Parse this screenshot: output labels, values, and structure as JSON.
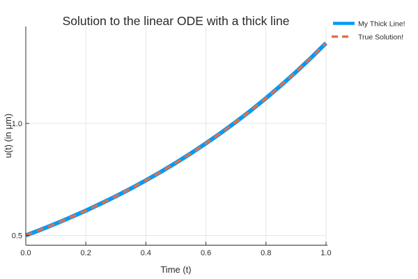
{
  "colors": {
    "background": "#ffffff",
    "grid": "#e6e6e6",
    "axis": "#2f2f2f",
    "text": "#2a2a2a",
    "series_blue": "#009af9",
    "series_orange": "#e36f47"
  },
  "chart_data": {
    "type": "line",
    "title": "Solution to the linear ODE with a thick line",
    "xlabel": "Time (t)",
    "ylabel": "u(t) (in μm)",
    "xlim": [
      0.0,
      1.0
    ],
    "ylim": [
      0.4564,
      1.433
    ],
    "grid": true,
    "legend_position": "outer-top-right",
    "xticks": {
      "values": [
        0.0,
        0.2,
        0.4,
        0.6,
        0.8,
        1.0
      ],
      "labels": [
        "0.0",
        "0.2",
        "0.4",
        "0.6",
        "0.8",
        "1.0"
      ]
    },
    "yticks": {
      "values": [
        0.5,
        1.0
      ],
      "labels": [
        "0.5",
        "1.0"
      ]
    },
    "x": [
      0.0,
      0.05,
      0.1,
      0.15,
      0.2,
      0.25,
      0.3,
      0.35,
      0.4,
      0.45,
      0.5,
      0.55,
      0.6,
      0.65,
      0.7,
      0.75,
      0.8,
      0.85,
      0.9,
      0.95,
      1.0
    ],
    "series": [
      {
        "name": "My Thick Line!",
        "color": "#009af9",
        "line_style": "solid",
        "line_width": 6,
        "values": [
          0.5,
          0.5256,
          0.5526,
          0.5809,
          0.6107,
          0.642,
          0.6749,
          0.7095,
          0.7459,
          0.7842,
          0.8244,
          0.8666,
          0.9111,
          0.9578,
          1.0069,
          1.0585,
          1.1128,
          1.1698,
          1.2298,
          1.2929,
          1.3591
        ]
      },
      {
        "name": "True Solution!",
        "color": "#e36f47",
        "line_style": "dashed",
        "line_width": 3.5,
        "values": [
          0.5,
          0.5256,
          0.5526,
          0.5809,
          0.6107,
          0.642,
          0.6749,
          0.7095,
          0.7459,
          0.7842,
          0.8244,
          0.8666,
          0.9111,
          0.9578,
          1.0069,
          1.0585,
          1.1128,
          1.1698,
          1.2298,
          1.2929,
          1.3591
        ]
      }
    ]
  }
}
